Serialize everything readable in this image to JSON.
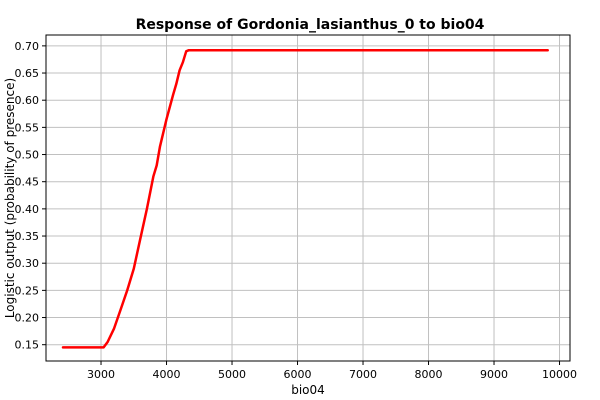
{
  "chart_data": {
    "type": "line",
    "title": "Response of Gordonia_lasianthus_0 to bio04",
    "xlabel": "bio04",
    "ylabel": "Logistic output (probability of presence)",
    "xlim": [
      2160,
      10160
    ],
    "ylim": [
      0.12,
      0.72
    ],
    "x_ticks": [
      3000,
      4000,
      5000,
      6000,
      7000,
      8000,
      9000,
      10000
    ],
    "y_ticks": [
      0.15,
      0.2,
      0.25,
      0.3,
      0.35,
      0.4,
      0.45,
      0.5,
      0.55,
      0.6,
      0.65,
      0.7
    ],
    "grid": true,
    "series": [
      {
        "color": "#ff0000",
        "x": [
          2420,
          3040,
          3100,
          3200,
          3300,
          3400,
          3500,
          3600,
          3700,
          3800,
          3850,
          3900,
          4000,
          4100,
          4150,
          4200,
          4250,
          4300,
          4340,
          4400,
          5000,
          6000,
          7000,
          8000,
          9000,
          9820
        ],
        "y": [
          0.145,
          0.145,
          0.155,
          0.18,
          0.215,
          0.25,
          0.29,
          0.345,
          0.4,
          0.46,
          0.48,
          0.515,
          0.565,
          0.61,
          0.63,
          0.655,
          0.67,
          0.69,
          0.692,
          0.692,
          0.692,
          0.692,
          0.692,
          0.692,
          0.692,
          0.692
        ]
      }
    ]
  }
}
